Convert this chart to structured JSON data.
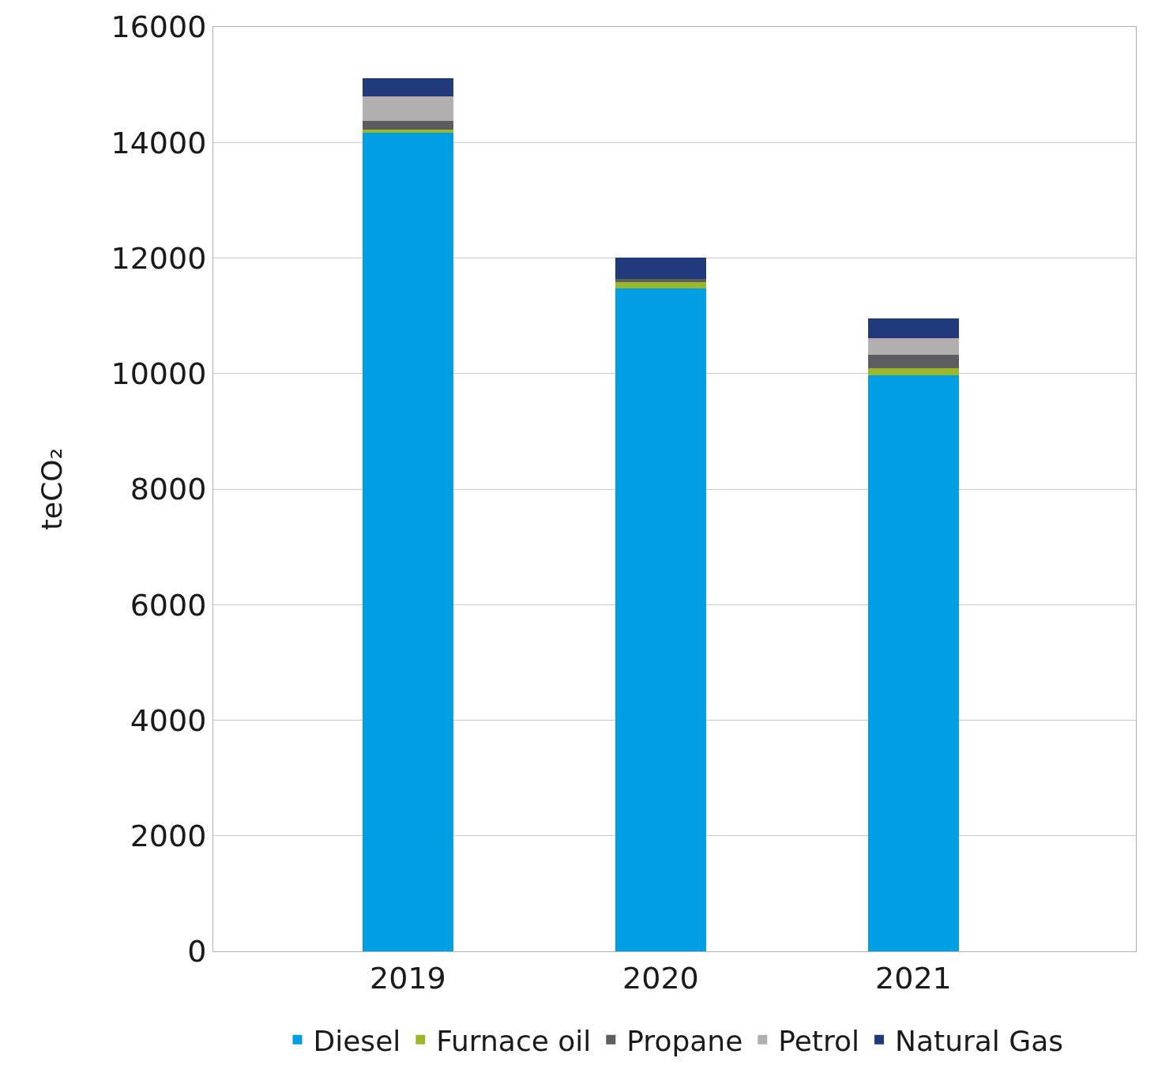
{
  "chart_data": {
    "type": "bar",
    "stacked": true,
    "ylabel": "teCO₂",
    "categories": [
      "2019",
      "2020",
      "2021"
    ],
    "series": [
      {
        "name": "Diesel",
        "color": "#009fe3",
        "values": [
          14170,
          11470,
          9970
        ]
      },
      {
        "name": "Furnace oil",
        "color": "#9bb82c",
        "values": [
          50,
          110,
          120
        ]
      },
      {
        "name": "Propane",
        "color": "#5d5d5f",
        "values": [
          150,
          60,
          240
        ]
      },
      {
        "name": "Petrol",
        "color": "#b3afb0",
        "values": [
          420,
          0,
          280
        ]
      },
      {
        "name": "Natural Gas",
        "color": "#213a7c",
        "values": [
          320,
          370,
          350
        ]
      }
    ],
    "ylim": [
      0,
      16000
    ],
    "yticks": [
      0,
      2000,
      4000,
      6000,
      8000,
      10000,
      12000,
      14000,
      16000
    ],
    "grid": "y",
    "legend": "bottom"
  }
}
